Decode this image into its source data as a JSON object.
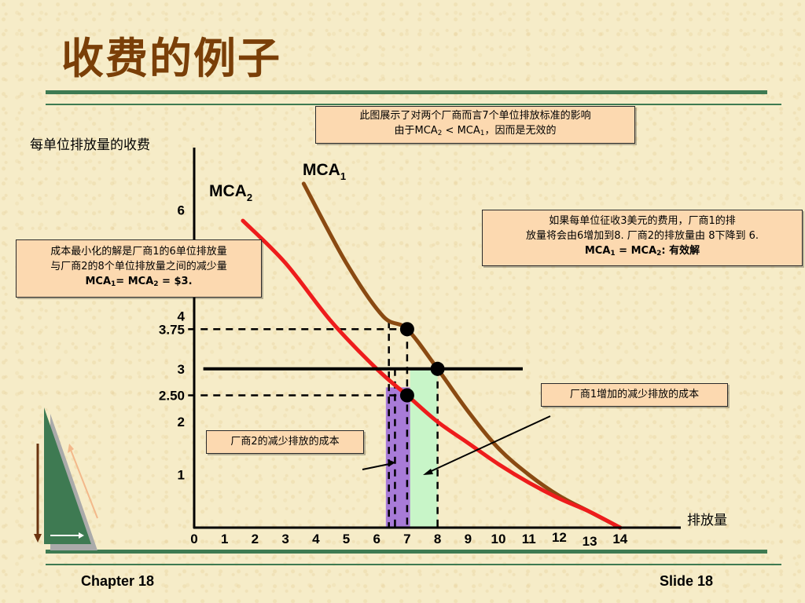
{
  "title": "收费的例子",
  "y_axis_label": "每单位排放量的收费",
  "x_axis_label": "排放量",
  "callouts": {
    "top": {
      "line1": "此图展示了对两个厂商而言7个单位排放标准的影响",
      "line2_pre": "由于MCA",
      "line2_s1": "2",
      "line2_mid": " < MCA",
      "line2_s2": "1",
      "line2_post": "，因而是无效的"
    },
    "left": {
      "line1": "成本最小化的解是厂商1的6单位排放量",
      "line2": "与厂商2的8个单位排放量之间的减少量",
      "line3_pre": "MCA",
      "line3_s1": "1",
      "line3_mid": "= MCA",
      "line3_s2": "2",
      "line3_post": " = $3."
    },
    "right": {
      "line1": "如果每单位征收3美元的费用，厂商1的排",
      "line2": "放量将会由6增加到8. 厂商2的排放量由 8下降到 6.",
      "line3_pre": "MCA",
      "line3_s1": "1",
      "line3_mid": " = MCA",
      "line3_s2": "2",
      "line3_post": ": 有效解"
    },
    "firm1_cost": "厂商1增加的减少排放的成本",
    "firm2_cost": "厂商2的减少排放的成本"
  },
  "footer": {
    "left": "Chapter 18",
    "right": "Slide 18"
  },
  "chart_data": {
    "type": "line",
    "x_ticks": [
      "0",
      "1",
      "2",
      "3",
      "4",
      "5",
      "6",
      "7",
      "8",
      "9",
      "10",
      "11",
      "12",
      "13",
      "14"
    ],
    "y_ticks": [
      {
        "label": "1",
        "value": 1
      },
      {
        "label": "2",
        "value": 2
      },
      {
        "label": "2.50",
        "value": 2.5
      },
      {
        "label": "3",
        "value": 3
      },
      {
        "label": "3.75",
        "value": 3.75
      },
      {
        "label": "4",
        "value": 4
      },
      {
        "label": "6",
        "value": 6
      }
    ],
    "xlim": [
      0,
      14
    ],
    "ylim": [
      0,
      7
    ],
    "series": [
      {
        "name": "MCA",
        "sub": "1",
        "color": "#8a4a12",
        "x": [
          3.6,
          5.0,
          6.2,
          7.0,
          8.0,
          9.0,
          10.0,
          11.0,
          12.0,
          13.0,
          14.0
        ],
        "y": [
          6.5,
          5.0,
          4.0,
          3.75,
          3.0,
          2.2,
          1.5,
          1.0,
          0.6,
          0.3,
          0.0
        ]
      },
      {
        "name": "MCA",
        "sub": "2",
        "color": "#ee1c1c",
        "x": [
          1.6,
          3.0,
          4.5,
          6.0,
          7.0,
          8.0,
          9.0,
          10.0,
          11.0,
          12.0,
          13.0,
          14.0
        ],
        "y": [
          5.8,
          5.0,
          3.9,
          3.0,
          2.5,
          2.0,
          1.6,
          1.2,
          0.85,
          0.55,
          0.3,
          0.0
        ]
      }
    ],
    "fee_line": {
      "y": 3,
      "x_from": 0.3,
      "x_to": 10.8
    },
    "points": [
      {
        "x": 7,
        "y": 3.75
      },
      {
        "x": 8,
        "y": 3
      },
      {
        "x": 7,
        "y": 2.5
      }
    ],
    "shaded_regions": [
      {
        "x_from": 6.3,
        "x_to": 7.1,
        "color": "#a87bd8"
      },
      {
        "x_from": 7.1,
        "x_to": 8.0,
        "color": "#c8f5c8"
      }
    ],
    "guides_vertical": [
      6.4,
      6.6,
      7.0,
      8.0
    ],
    "guides_horizontal": [
      3.75,
      2.5
    ],
    "grid": false
  }
}
